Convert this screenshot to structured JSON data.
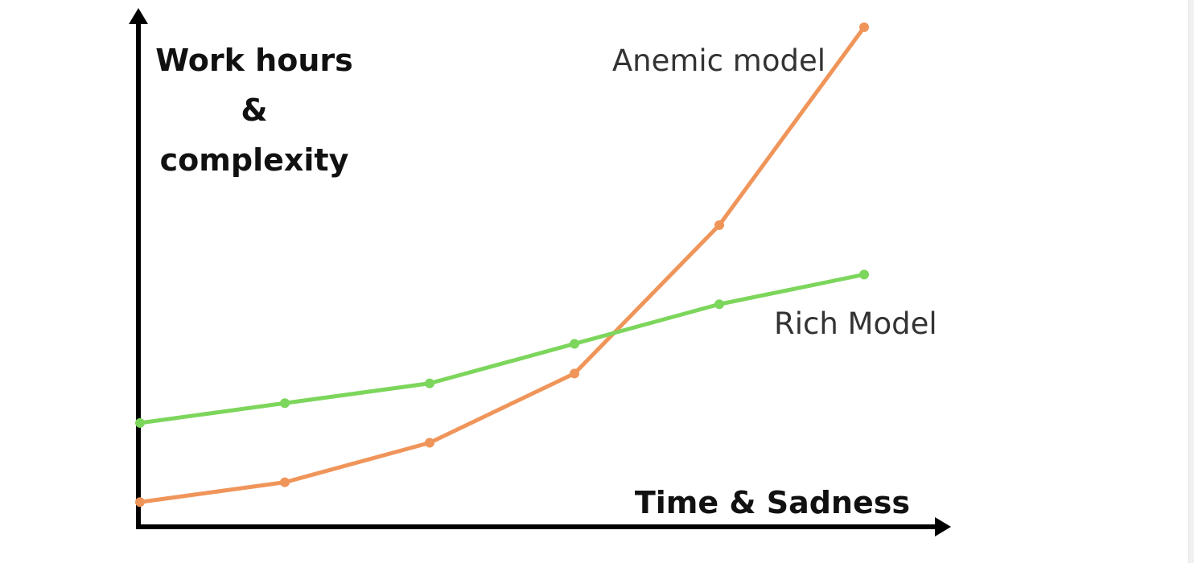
{
  "chart_data": {
    "type": "line",
    "title": "",
    "ylabel_lines": [
      "Work hours",
      "&",
      "complexity"
    ],
    "xlabel": "Time & Sadness",
    "x": [
      0,
      1,
      2,
      3,
      4,
      5
    ],
    "xlim": [
      0,
      5.5
    ],
    "ylim": [
      0,
      100
    ],
    "grid": false,
    "legend": "none",
    "series": [
      {
        "name": "Anemic model",
        "color": "#f0955a",
        "values": [
          5,
          9,
          17,
          31,
          61,
          101
        ]
      },
      {
        "name": "Rich Model",
        "color": "#7dd65c",
        "values": [
          21,
          25,
          29,
          37,
          45,
          51
        ]
      }
    ]
  }
}
